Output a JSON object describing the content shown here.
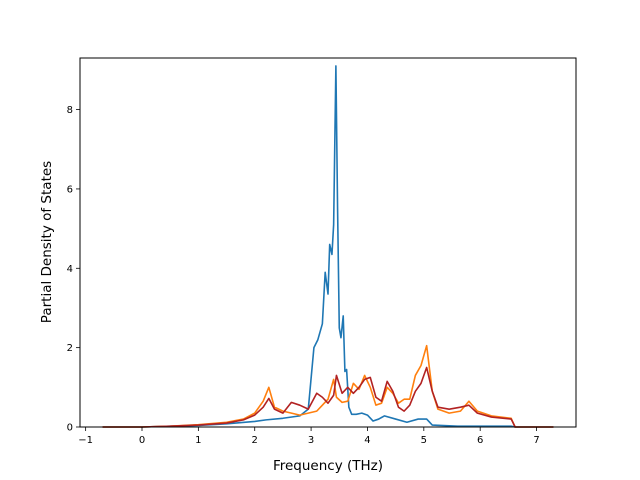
{
  "chart_data": {
    "type": "line",
    "title": "",
    "xlabel": "Frequency (THz)",
    "ylabel": "Partial Density of States",
    "xlim": [
      -1.1,
      7.7
    ],
    "ylim": [
      0,
      9.3
    ],
    "xticks": [
      -1,
      0,
      1,
      2,
      3,
      4,
      5,
      6,
      7
    ],
    "yticks": [
      0,
      2,
      4,
      6,
      8
    ],
    "grid": false,
    "series": [
      {
        "color": "#1f77b4",
        "x": [
          -0.7,
          0.0,
          0.5,
          1.0,
          1.5,
          2.0,
          2.2,
          2.5,
          2.8,
          2.95,
          3.05,
          3.12,
          3.2,
          3.25,
          3.3,
          3.33,
          3.37,
          3.4,
          3.44,
          3.47,
          3.5,
          3.53,
          3.57,
          3.6,
          3.63,
          3.67,
          3.72,
          3.8,
          3.9,
          4.0,
          4.1,
          4.2,
          4.3,
          4.5,
          4.7,
          4.9,
          5.05,
          5.15,
          5.3,
          5.6,
          6.0,
          6.55,
          6.62,
          7.3
        ],
        "y": [
          0.0,
          0.0,
          0.02,
          0.04,
          0.08,
          0.14,
          0.18,
          0.22,
          0.28,
          0.45,
          2.0,
          2.2,
          2.6,
          3.9,
          3.35,
          4.6,
          4.35,
          5.1,
          9.1,
          5.5,
          2.5,
          2.25,
          2.8,
          1.4,
          1.45,
          0.5,
          0.32,
          0.32,
          0.35,
          0.3,
          0.15,
          0.2,
          0.28,
          0.2,
          0.12,
          0.2,
          0.2,
          0.05,
          0.04,
          0.02,
          0.02,
          0.02,
          0.0,
          0.0
        ]
      },
      {
        "color": "#ff7f0e",
        "x": [
          -0.7,
          0.0,
          0.5,
          1.0,
          1.5,
          1.8,
          2.0,
          2.15,
          2.25,
          2.35,
          2.5,
          2.65,
          2.8,
          2.95,
          3.1,
          3.2,
          3.3,
          3.4,
          3.45,
          3.55,
          3.65,
          3.75,
          3.85,
          3.95,
          4.05,
          4.15,
          4.25,
          4.35,
          4.45,
          4.55,
          4.65,
          4.75,
          4.85,
          4.95,
          5.05,
          5.15,
          5.25,
          5.45,
          5.65,
          5.8,
          5.95,
          6.2,
          6.55,
          6.62,
          7.3
        ],
        "y": [
          0.0,
          0.0,
          0.02,
          0.06,
          0.12,
          0.2,
          0.35,
          0.65,
          1.0,
          0.5,
          0.4,
          0.35,
          0.3,
          0.35,
          0.4,
          0.55,
          0.7,
          1.2,
          0.75,
          0.62,
          0.65,
          1.1,
          0.95,
          1.3,
          1.0,
          0.55,
          0.6,
          1.0,
          0.85,
          0.6,
          0.7,
          0.7,
          1.3,
          1.55,
          2.05,
          0.9,
          0.45,
          0.35,
          0.4,
          0.65,
          0.4,
          0.28,
          0.22,
          0.0,
          0.0
        ]
      },
      {
        "color": "#b22222",
        "x": [
          -0.7,
          0.0,
          0.5,
          1.0,
          1.5,
          1.8,
          2.0,
          2.15,
          2.25,
          2.35,
          2.5,
          2.65,
          2.8,
          2.95,
          3.1,
          3.2,
          3.3,
          3.4,
          3.45,
          3.55,
          3.65,
          3.75,
          3.85,
          3.95,
          4.05,
          4.15,
          4.25,
          4.35,
          4.45,
          4.55,
          4.65,
          4.75,
          4.85,
          4.95,
          5.05,
          5.15,
          5.25,
          5.45,
          5.65,
          5.8,
          5.95,
          6.2,
          6.55,
          6.62,
          7.3
        ],
        "y": [
          0.0,
          0.0,
          0.02,
          0.05,
          0.1,
          0.18,
          0.3,
          0.5,
          0.72,
          0.45,
          0.35,
          0.62,
          0.55,
          0.45,
          0.85,
          0.75,
          0.6,
          0.8,
          1.3,
          0.85,
          1.0,
          0.85,
          1.0,
          1.2,
          1.25,
          0.75,
          0.65,
          1.15,
          0.9,
          0.5,
          0.4,
          0.55,
          0.9,
          1.1,
          1.5,
          0.9,
          0.5,
          0.45,
          0.5,
          0.55,
          0.35,
          0.25,
          0.2,
          0.0,
          0.0
        ]
      }
    ]
  }
}
